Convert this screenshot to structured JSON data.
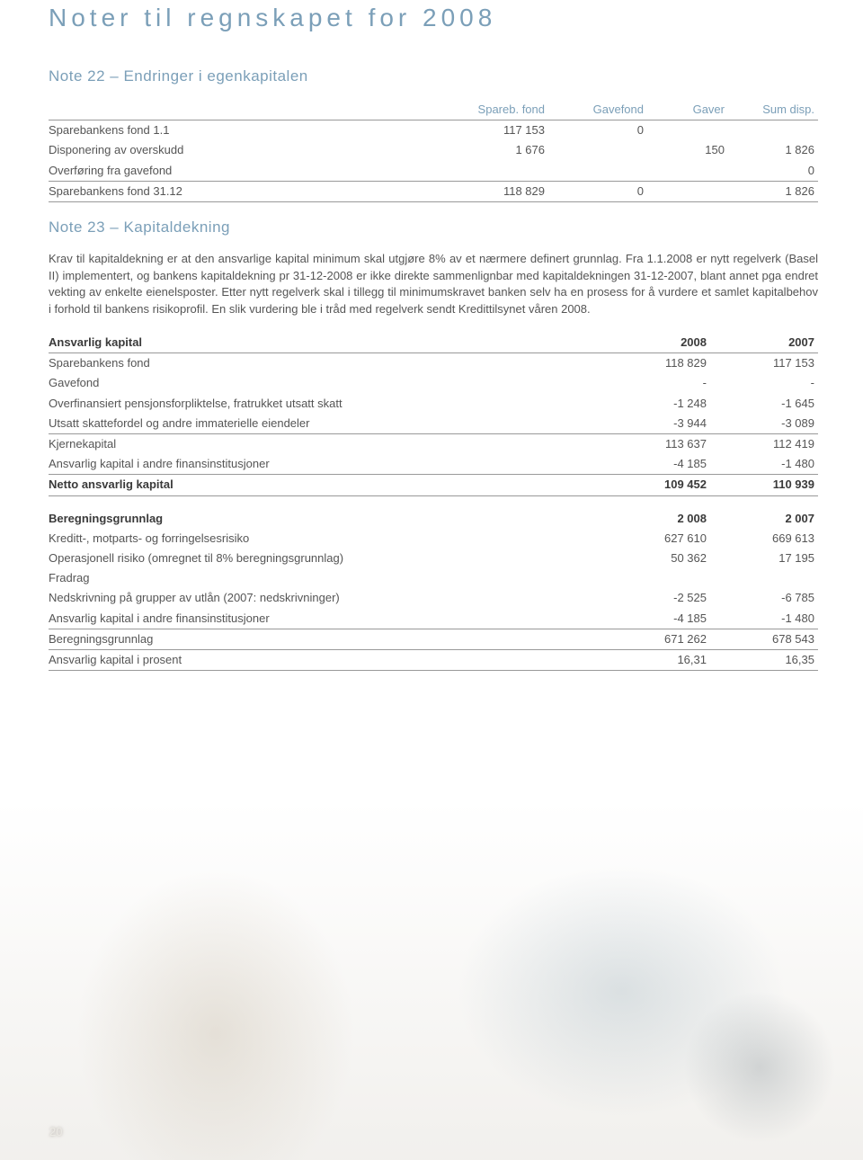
{
  "title": "Noter til regnskapet for 2008",
  "note22": {
    "heading": "Note  22 – Endringer i egenkapitalen",
    "columns": [
      "",
      "Spareb. fond",
      "Gavefond",
      "Gaver",
      "Sum disp."
    ],
    "rows": [
      {
        "label": "Sparebankens fond 1.1",
        "c": [
          "117 153",
          "0",
          "",
          ""
        ],
        "rule": false
      },
      {
        "label": "Disponering av overskudd",
        "c": [
          "1 676",
          "",
          "150",
          "1 826"
        ],
        "rule": false
      },
      {
        "label": "Overføring fra gavefond",
        "c": [
          "",
          "",
          "",
          "0"
        ],
        "rule": true
      },
      {
        "label": "Sparebankens fond 31.12",
        "c": [
          "118 829",
          "0",
          "",
          "1 826"
        ],
        "rule": true
      }
    ]
  },
  "note23": {
    "heading": "Note  23 – Kapitaldekning",
    "paragraph": "Krav til kapitaldekning er at den ansvarlige kapital minimum skal utgjøre 8% av et nærmere definert grunnlag. Fra 1.1.2008 er nytt regelverk (Basel II) implementert, og bankens kapitaldekning pr 31-12-2008 er ikke direkte sammenlignbar med kapitaldekningen 31-12-2007, blant annet pga endret vekting av enkelte eienelsposter. Etter nytt regelverk skal i tillegg til minimumskravet banken selv ha en prosess for å vurdere et samlet kapitalbehov i forhold til bankens risikoprofil. En slik vurdering ble i tråd med regelverk sendt Kredittilsynet våren 2008.",
    "tableA": {
      "header": [
        "Ansvarlig kapital",
        "2008",
        "2007"
      ],
      "rows": [
        {
          "label": " Sparebankens fond",
          "c": [
            "118 829",
            "117 153"
          ],
          "rule": false,
          "bold": false
        },
        {
          "label": "Gavefond",
          "c": [
            "-",
            "-"
          ],
          "rule": false,
          "bold": false
        },
        {
          "label": "Overfinansiert pensjonsforpliktelse, fratrukket utsatt skatt",
          "c": [
            "-1 248",
            "-1 645"
          ],
          "rule": false,
          "bold": false
        },
        {
          "label": "Utsatt skattefordel og andre immaterielle eiendeler",
          "c": [
            "-3 944",
            "-3 089"
          ],
          "rule": true,
          "bold": false
        },
        {
          "label": "Kjernekapital",
          "c": [
            "113 637",
            "112 419"
          ],
          "rule": false,
          "bold": false
        },
        {
          "label": "Ansvarlig kapital i andre finansinstitusjoner",
          "c": [
            "-4 185",
            "-1 480"
          ],
          "rule": true,
          "bold": false
        },
        {
          "label": "Netto ansvarlig kapital",
          "c": [
            "109 452",
            "110 939"
          ],
          "rule": true,
          "bold": true
        }
      ]
    },
    "tableB": {
      "rows": [
        {
          "label": "Beregningsgrunnlag",
          "c": [
            "2 008",
            "2 007"
          ],
          "rule": false,
          "bold": true
        },
        {
          "label": "Kreditt-, motparts- og forringelsesrisiko",
          "c": [
            "627 610",
            "669 613"
          ],
          "rule": false,
          "bold": false
        },
        {
          "label": "Operasjonell risiko (omregnet til 8% beregningsgrunnlag)",
          "c": [
            "50 362",
            "17 195"
          ],
          "rule": false,
          "bold": false
        },
        {
          "label": "Fradrag",
          "c": [
            "",
            ""
          ],
          "rule": false,
          "bold": false
        },
        {
          "label": "Nedskrivning på grupper av utlån (2007: nedskrivninger)",
          "c": [
            "-2 525",
            "-6 785"
          ],
          "rule": false,
          "bold": false
        },
        {
          "label": "Ansvarlig kapital i andre finansinstitusjoner",
          "c": [
            "-4 185",
            "-1 480"
          ],
          "rule": true,
          "bold": false
        },
        {
          "label": "Beregningsgrunnlag",
          "c": [
            "671 262",
            "678 543"
          ],
          "rule": true,
          "bold": false
        },
        {
          "label": "Ansvarlig kapital i prosent",
          "c": [
            "16,31",
            "16,35"
          ],
          "rule": true,
          "bold": false
        }
      ]
    }
  },
  "pageNumber": "20",
  "style": {
    "accent": "#7b9fb8",
    "colWidths22": [
      "auto",
      "110px",
      "110px",
      "90px",
      "100px"
    ],
    "colWidths23": [
      "auto",
      "120px",
      "120px"
    ]
  }
}
